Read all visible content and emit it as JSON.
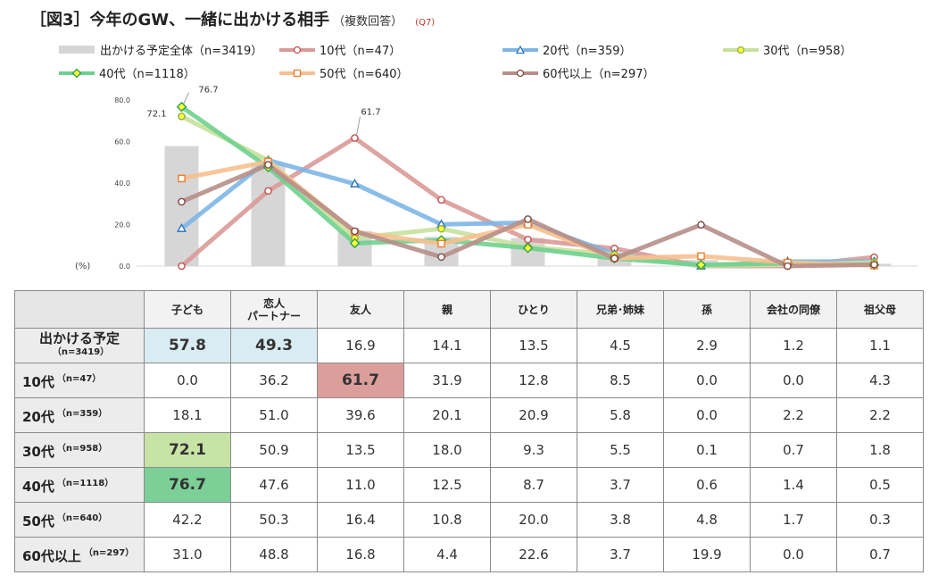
{
  "title": {
    "main": "［図3］今年のGW、一緒に出かける相手",
    "sub": "（複数回答）",
    "q": "(Q7)"
  },
  "legend": [
    {
      "label": "出かける予定全体（n=3419）",
      "kind": "bar",
      "color": "#d6d6d6"
    },
    {
      "label": "10代（n=47）",
      "kind": "circle",
      "color": "#d99a97"
    },
    {
      "label": "20代（n=359）",
      "kind": "triangle",
      "color": "#7db6e6"
    },
    {
      "label": "30代（n=958）",
      "kind": "circle",
      "color": "#c6e19c"
    },
    {
      "label": "40代（n=1118）",
      "kind": "diamond",
      "color": "#6fd08f"
    },
    {
      "label": "50代（n=640）",
      "kind": "square",
      "color": "#f7c08f"
    },
    {
      "label": "60代以上（n=297）",
      "kind": "circle",
      "color": "#b78f88"
    }
  ],
  "chart_data": {
    "type": "bar+line",
    "categories": [
      "子ども",
      "恋人パートナー",
      "友人",
      "親",
      "ひとり",
      "兄弟・姉妹",
      "孫",
      "会社の同僚",
      "祖父母"
    ],
    "ylim": [
      0,
      80
    ],
    "yticks": [
      "0.0",
      "20.0",
      "40.0",
      "60.0",
      "80.0"
    ],
    "ylabel": "(%)",
    "bar_series": {
      "name": "出かける予定全体",
      "values": [
        57.8,
        49.3,
        16.9,
        14.1,
        13.5,
        4.5,
        2.9,
        1.2,
        1.1
      ],
      "color": "#d6d6d6"
    },
    "series": [
      {
        "name": "10代",
        "values": [
          0.0,
          36.2,
          61.7,
          31.9,
          12.8,
          8.5,
          0.0,
          0.0,
          4.3
        ],
        "color": "#d99a97",
        "marker": "circle"
      },
      {
        "name": "20代",
        "values": [
          18.1,
          51.0,
          39.6,
          20.1,
          20.9,
          5.8,
          0.0,
          2.2,
          2.2
        ],
        "color": "#7db6e6",
        "marker": "triangle"
      },
      {
        "name": "30代",
        "values": [
          72.1,
          50.9,
          13.5,
          18.0,
          9.3,
          5.5,
          0.1,
          0.7,
          1.8
        ],
        "color": "#c6e19c",
        "marker": "circle"
      },
      {
        "name": "40代",
        "values": [
          76.7,
          47.6,
          11.0,
          12.5,
          8.7,
          3.7,
          0.6,
          1.4,
          0.5
        ],
        "color": "#6fd08f",
        "marker": "diamond"
      },
      {
        "name": "50代",
        "values": [
          42.2,
          50.3,
          16.4,
          10.8,
          20.0,
          3.8,
          4.8,
          1.7,
          0.3
        ],
        "color": "#f7c08f",
        "marker": "square"
      },
      {
        "name": "60代以上",
        "values": [
          31.0,
          48.8,
          16.8,
          4.4,
          22.6,
          3.7,
          19.9,
          0.0,
          0.7
        ],
        "color": "#b78f88",
        "marker": "circle"
      }
    ],
    "annotations": [
      {
        "text": "72.1",
        "series": "30代",
        "category": "子ども"
      },
      {
        "text": "76.7",
        "series": "40代",
        "category": "子ども"
      },
      {
        "text": "61.7",
        "series": "10代",
        "category": "友人"
      }
    ]
  },
  "table": {
    "headers": [
      "子ども",
      "恋人\nパートナー",
      "友人",
      "親",
      "ひとり",
      "兄弟･姉妹",
      "孫",
      "会社の同僚",
      "祖父母"
    ],
    "rows": [
      {
        "label": "出かける予定",
        "n": "（n=3419）",
        "values": [
          "57.8",
          "49.3",
          "16.9",
          "14.1",
          "13.5",
          "4.5",
          "2.9",
          "1.2",
          "1.1"
        ]
      },
      {
        "label": "10代",
        "n": "（n=47）",
        "values": [
          "0.0",
          "36.2",
          "61.7",
          "31.9",
          "12.8",
          "8.5",
          "0.0",
          "0.0",
          "4.3"
        ]
      },
      {
        "label": "20代",
        "n": "（n=359）",
        "values": [
          "18.1",
          "51.0",
          "39.6",
          "20.1",
          "20.9",
          "5.8",
          "0.0",
          "2.2",
          "2.2"
        ]
      },
      {
        "label": "30代",
        "n": "（n=958）",
        "values": [
          "72.1",
          "50.9",
          "13.5",
          "18.0",
          "9.3",
          "5.5",
          "0.1",
          "0.7",
          "1.8"
        ]
      },
      {
        "label": "40代",
        "n": "（n=1118）",
        "values": [
          "76.7",
          "47.6",
          "11.0",
          "12.5",
          "8.7",
          "3.7",
          "0.6",
          "1.4",
          "0.5"
        ]
      },
      {
        "label": "50代",
        "n": "（n=640）",
        "values": [
          "42.2",
          "50.3",
          "16.4",
          "10.8",
          "20.0",
          "3.8",
          "4.8",
          "1.7",
          "0.3"
        ]
      },
      {
        "label": "60代以上",
        "n": "（n=297）",
        "values": [
          "31.0",
          "48.8",
          "16.8",
          "4.4",
          "22.6",
          "3.7",
          "19.9",
          "0.0",
          "0.7"
        ]
      }
    ],
    "highlights": [
      {
        "row": 0,
        "col": 0,
        "color": "#d9ecf3"
      },
      {
        "row": 0,
        "col": 1,
        "color": "#d9ecf3"
      },
      {
        "row": 1,
        "col": 2,
        "color": "#dc9e9b"
      },
      {
        "row": 3,
        "col": 0,
        "color": "#c7e3a6"
      },
      {
        "row": 4,
        "col": 0,
        "color": "#7ccf96"
      }
    ]
  }
}
